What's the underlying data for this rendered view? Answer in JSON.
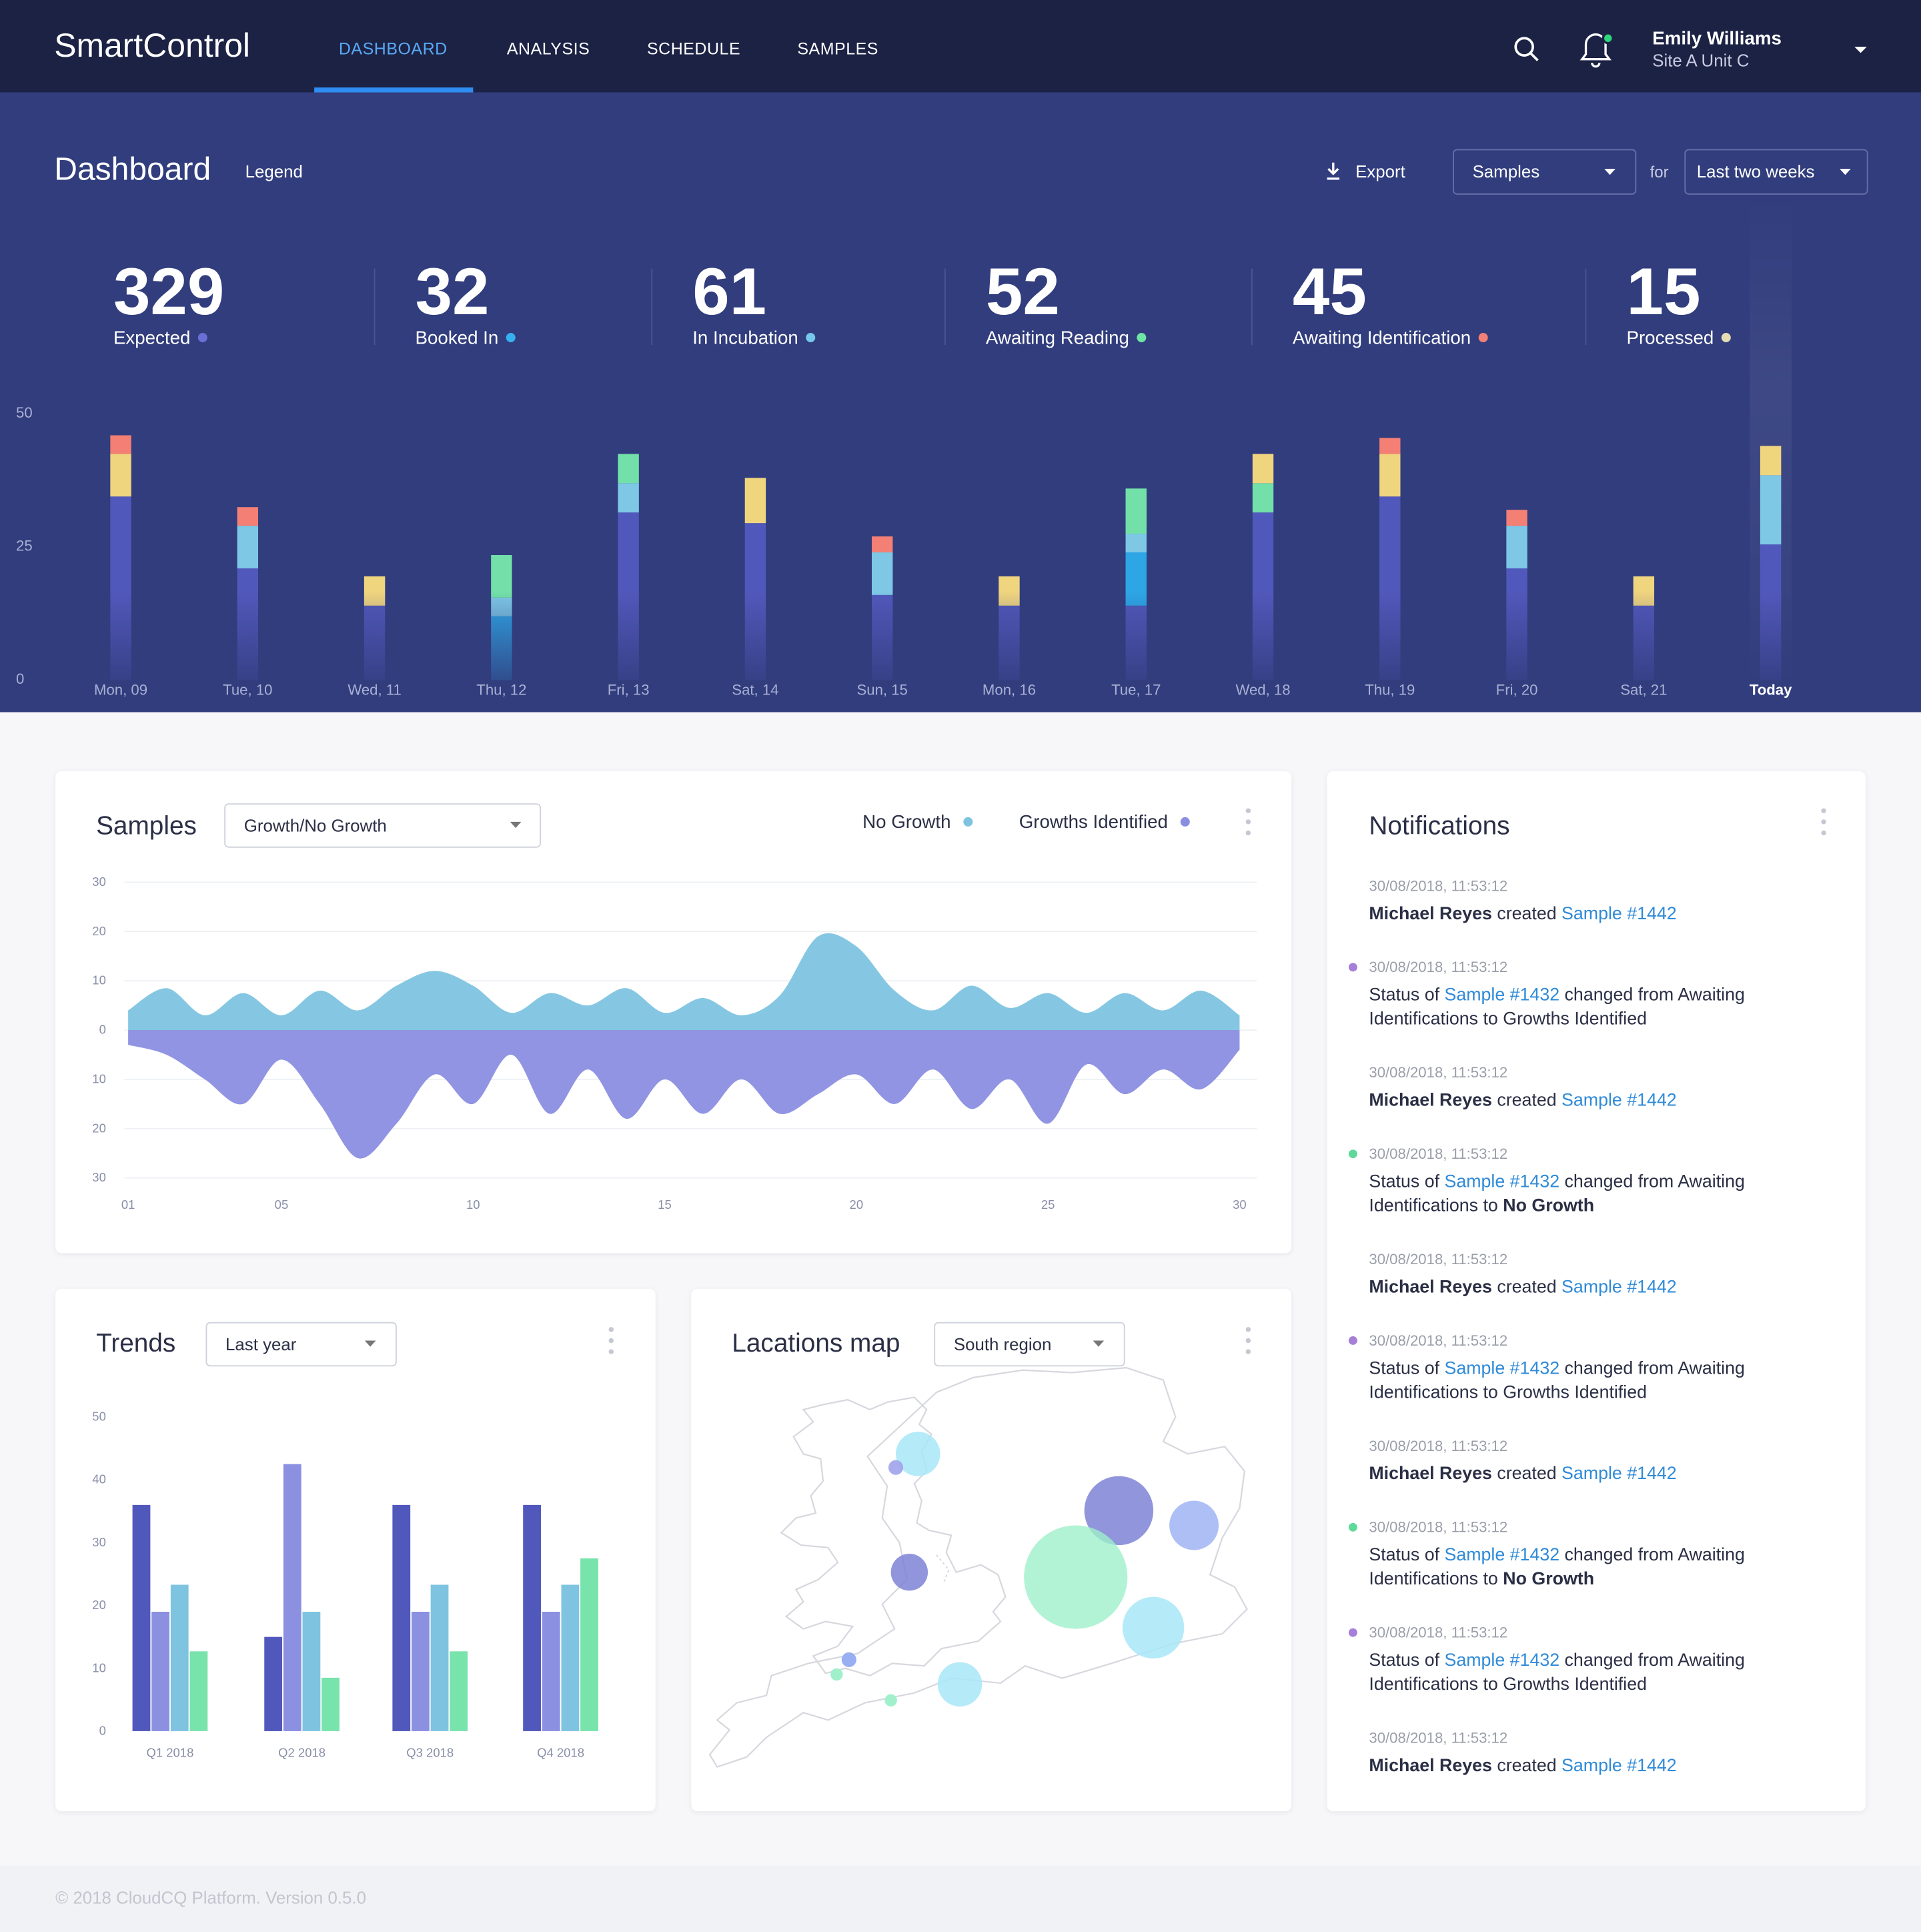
{
  "nav": {
    "brand": "SmartControl",
    "tabs": [
      "DASHBOARD",
      "ANALYSIS",
      "SCHEDULE",
      "SAMPLES"
    ],
    "active": 0,
    "user": {
      "name": "Emily Williams",
      "site": "Site A Unit C"
    }
  },
  "header": {
    "title": "Dashboard",
    "legend": "Legend",
    "export": "Export",
    "filter": "Samples",
    "for": "for",
    "period": "Last two weeks"
  },
  "stats": [
    {
      "value": 329,
      "label": "Expected",
      "color": "#6a6fd6"
    },
    {
      "value": 32,
      "label": "Booked In",
      "color": "#36b0f0"
    },
    {
      "value": 61,
      "label": "In Incubation",
      "color": "#76c8ea"
    },
    {
      "value": 52,
      "label": "Awaiting Reading",
      "color": "#6ee5a5"
    },
    {
      "value": 45,
      "label": "Awaiting Identification",
      "color": "#f47f74"
    },
    {
      "value": 15,
      "label": "Processed",
      "color": "#e6dcb4"
    }
  ],
  "chart_data": [
    {
      "type": "stacked-bar",
      "categories": [
        "Mon, 09",
        "Tue, 10",
        "Wed, 11",
        "Thu, 12",
        "Fri, 13",
        "Sat, 14",
        "Sun, 15",
        "Mon, 16",
        "Tue, 17",
        "Wed, 18",
        "Thu, 19",
        "Fri, 20",
        "Sat, 21",
        "Today"
      ],
      "series": [
        {
          "name": "Expected",
          "color": "#5158bb",
          "values": [
            34.5,
            21,
            14,
            0,
            31.5,
            29.5,
            16,
            14,
            14,
            31.5,
            34.5,
            21,
            14,
            25.5
          ]
        },
        {
          "name": "Booked In",
          "color": "#2ea6e6",
          "values": [
            0,
            0,
            0,
            12,
            0,
            0,
            0,
            0,
            10,
            0,
            0,
            0,
            0,
            0
          ]
        },
        {
          "name": "In Incubation",
          "color": "#7ec8e6",
          "values": [
            0,
            8,
            0,
            3.5,
            5.5,
            0,
            8,
            0,
            3.5,
            0,
            0,
            8,
            0,
            13
          ]
        },
        {
          "name": "Awaiting Reading",
          "color": "#72e0a8",
          "values": [
            0,
            0,
            0,
            8,
            5.5,
            0,
            0,
            0,
            8.5,
            5.5,
            0,
            0,
            0,
            0
          ]
        },
        {
          "name": "Processed",
          "color": "#f0d57f",
          "values": [
            8,
            0,
            5.5,
            0,
            0,
            8.5,
            0,
            5.5,
            0,
            5.5,
            8,
            0,
            5.5,
            5.5
          ]
        },
        {
          "name": "Awaiting Identification",
          "color": "#f47f74",
          "values": [
            3.5,
            3.5,
            0,
            0,
            0,
            0,
            3,
            0,
            0,
            0,
            3,
            3,
            0,
            0
          ]
        }
      ],
      "ylim": [
        0,
        50
      ],
      "yticks": [
        0,
        25,
        50
      ]
    },
    {
      "type": "area",
      "title": "Samples",
      "filter": "Growth/No Growth",
      "x": [
        1,
        2,
        3,
        4,
        5,
        6,
        7,
        8,
        9,
        10,
        11,
        12,
        13,
        14,
        15,
        16,
        17,
        18,
        19,
        20,
        21,
        22,
        23,
        24,
        25,
        26,
        27,
        28,
        29,
        30
      ],
      "series": [
        {
          "name": "No Growth",
          "color": "#7ec4e0",
          "values": [
            4,
            8.5,
            3,
            7.5,
            3,
            8,
            4,
            9,
            12,
            9,
            3.5,
            7.5,
            5,
            8.5,
            3.5,
            6.5,
            3,
            7,
            19,
            17,
            8,
            4,
            9,
            4.5,
            7.5,
            3.5,
            7.5,
            4,
            8,
            3
          ]
        },
        {
          "name": "Growths Identified",
          "color": "#8a8ee0",
          "values": [
            -3,
            -5,
            -10,
            -15,
            -6,
            -15,
            -26,
            -19,
            -9,
            -15,
            -5,
            -17,
            -8,
            -18,
            -10,
            -17,
            -10,
            -17,
            -13,
            -9,
            -15,
            -8,
            -16,
            -10,
            -19,
            -7,
            -13,
            -8,
            -12,
            -4
          ]
        }
      ],
      "xlim": [
        1,
        30
      ],
      "xticks": [
        {
          "value": 1,
          "label": "01"
        },
        {
          "value": 5,
          "label": "05"
        },
        10,
        15,
        20,
        25,
        30
      ],
      "ylim": [
        -30,
        30
      ],
      "yticks": [
        30,
        20,
        10,
        0,
        {
          "value": -10,
          "label": "10"
        },
        {
          "value": -20,
          "label": "20"
        },
        {
          "value": -30,
          "label": "30"
        }
      ],
      "grid": true
    },
    {
      "type": "grouped-bar",
      "title": "Trends",
      "filter": "Last year",
      "categories": [
        "Q1 2018",
        "Q2 2018",
        "Q3 2018",
        "Q4 2018"
      ],
      "series": [
        {
          "color": "#5158bb",
          "values": [
            36,
            15,
            36,
            36
          ]
        },
        {
          "color": "#8b90e0",
          "values": [
            19,
            42.5,
            19,
            19
          ]
        },
        {
          "color": "#7ec4e0",
          "values": [
            23.3,
            19,
            23.3,
            23.3
          ]
        },
        {
          "color": "#79e3ac",
          "values": [
            12.7,
            8.5,
            12.7,
            27.5
          ]
        }
      ],
      "ylim": [
        0,
        50
      ],
      "yticks": [
        0,
        10,
        20,
        30,
        40,
        50
      ]
    }
  ],
  "map": {
    "title": "Lacations map",
    "filter": "South region"
  },
  "notifications": {
    "title": "Notifications",
    "items": [
      {
        "time": "30/08/2018, 11:53:12",
        "lines": [
          [
            {
              "text": "Michael Reyes",
              "style": "bold"
            },
            {
              "text": " created ",
              "style": "plain"
            },
            {
              "text": "Sample #1442",
              "style": "link"
            }
          ]
        ]
      },
      {
        "time": "30/08/2018, 11:53:12",
        "dot": "#a57fd8",
        "lines": [
          [
            {
              "text": "Status of ",
              "style": "plain"
            },
            {
              "text": "Sample #1432",
              "style": "link"
            },
            {
              "text": " changed from Awaiting",
              "style": "plain"
            }
          ],
          [
            {
              "text": "Identifications to Growths Identified",
              "style": "plain"
            }
          ]
        ]
      },
      {
        "time": "30/08/2018, 11:53:12",
        "lines": [
          [
            {
              "text": "Michael Reyes",
              "style": "bold"
            },
            {
              "text": " created ",
              "style": "plain"
            },
            {
              "text": "Sample #1442",
              "style": "link"
            }
          ]
        ]
      },
      {
        "time": "30/08/2018, 11:53:12",
        "dot": "#5fd99a",
        "lines": [
          [
            {
              "text": "Status of ",
              "style": "plain"
            },
            {
              "text": "Sample #1432",
              "style": "link"
            },
            {
              "text": " changed from Awaiting",
              "style": "plain"
            }
          ],
          [
            {
              "text": "Identifications to ",
              "style": "plain"
            },
            {
              "text": "No Growth",
              "style": "bold"
            }
          ]
        ]
      },
      {
        "time": "30/08/2018, 11:53:12",
        "lines": [
          [
            {
              "text": "Michael Reyes",
              "style": "bold"
            },
            {
              "text": " created ",
              "style": "plain"
            },
            {
              "text": "Sample #1442",
              "style": "link"
            }
          ]
        ]
      },
      {
        "time": "30/08/2018, 11:53:12",
        "dot": "#a57fd8",
        "lines": [
          [
            {
              "text": "Status of ",
              "style": "plain"
            },
            {
              "text": "Sample #1432",
              "style": "link"
            },
            {
              "text": " changed from Awaiting",
              "style": "plain"
            }
          ],
          [
            {
              "text": "Identifications to Growths Identified",
              "style": "plain"
            }
          ]
        ]
      },
      {
        "time": "30/08/2018, 11:53:12",
        "lines": [
          [
            {
              "text": "Michael Reyes",
              "style": "bold"
            },
            {
              "text": " created ",
              "style": "plain"
            },
            {
              "text": "Sample #1442",
              "style": "link"
            }
          ]
        ]
      },
      {
        "time": "30/08/2018, 11:53:12",
        "dot": "#5fd99a",
        "lines": [
          [
            {
              "text": "Status of ",
              "style": "plain"
            },
            {
              "text": "Sample #1432",
              "style": "link"
            },
            {
              "text": " changed from Awaiting",
              "style": "plain"
            }
          ],
          [
            {
              "text": "Identifications to ",
              "style": "plain"
            },
            {
              "text": "No Growth",
              "style": "bold"
            }
          ]
        ]
      },
      {
        "time": "30/08/2018, 11:53:12",
        "dot": "#a57fd8",
        "lines": [
          [
            {
              "text": "Status of ",
              "style": "plain"
            },
            {
              "text": "Sample #1432",
              "style": "link"
            },
            {
              "text": " changed from Awaiting",
              "style": "plain"
            }
          ],
          [
            {
              "text": "Identifications to Growths Identified",
              "style": "plain"
            }
          ]
        ]
      },
      {
        "time": "30/08/2018, 11:53:12",
        "lines": [
          [
            {
              "text": "Michael Reyes",
              "style": "bold"
            },
            {
              "text": " created ",
              "style": "plain"
            },
            {
              "text": "Sample #1442",
              "style": "link"
            }
          ]
        ]
      }
    ]
  },
  "footer": "© 2018 CloudCQ Platform. Version 0.5.0"
}
